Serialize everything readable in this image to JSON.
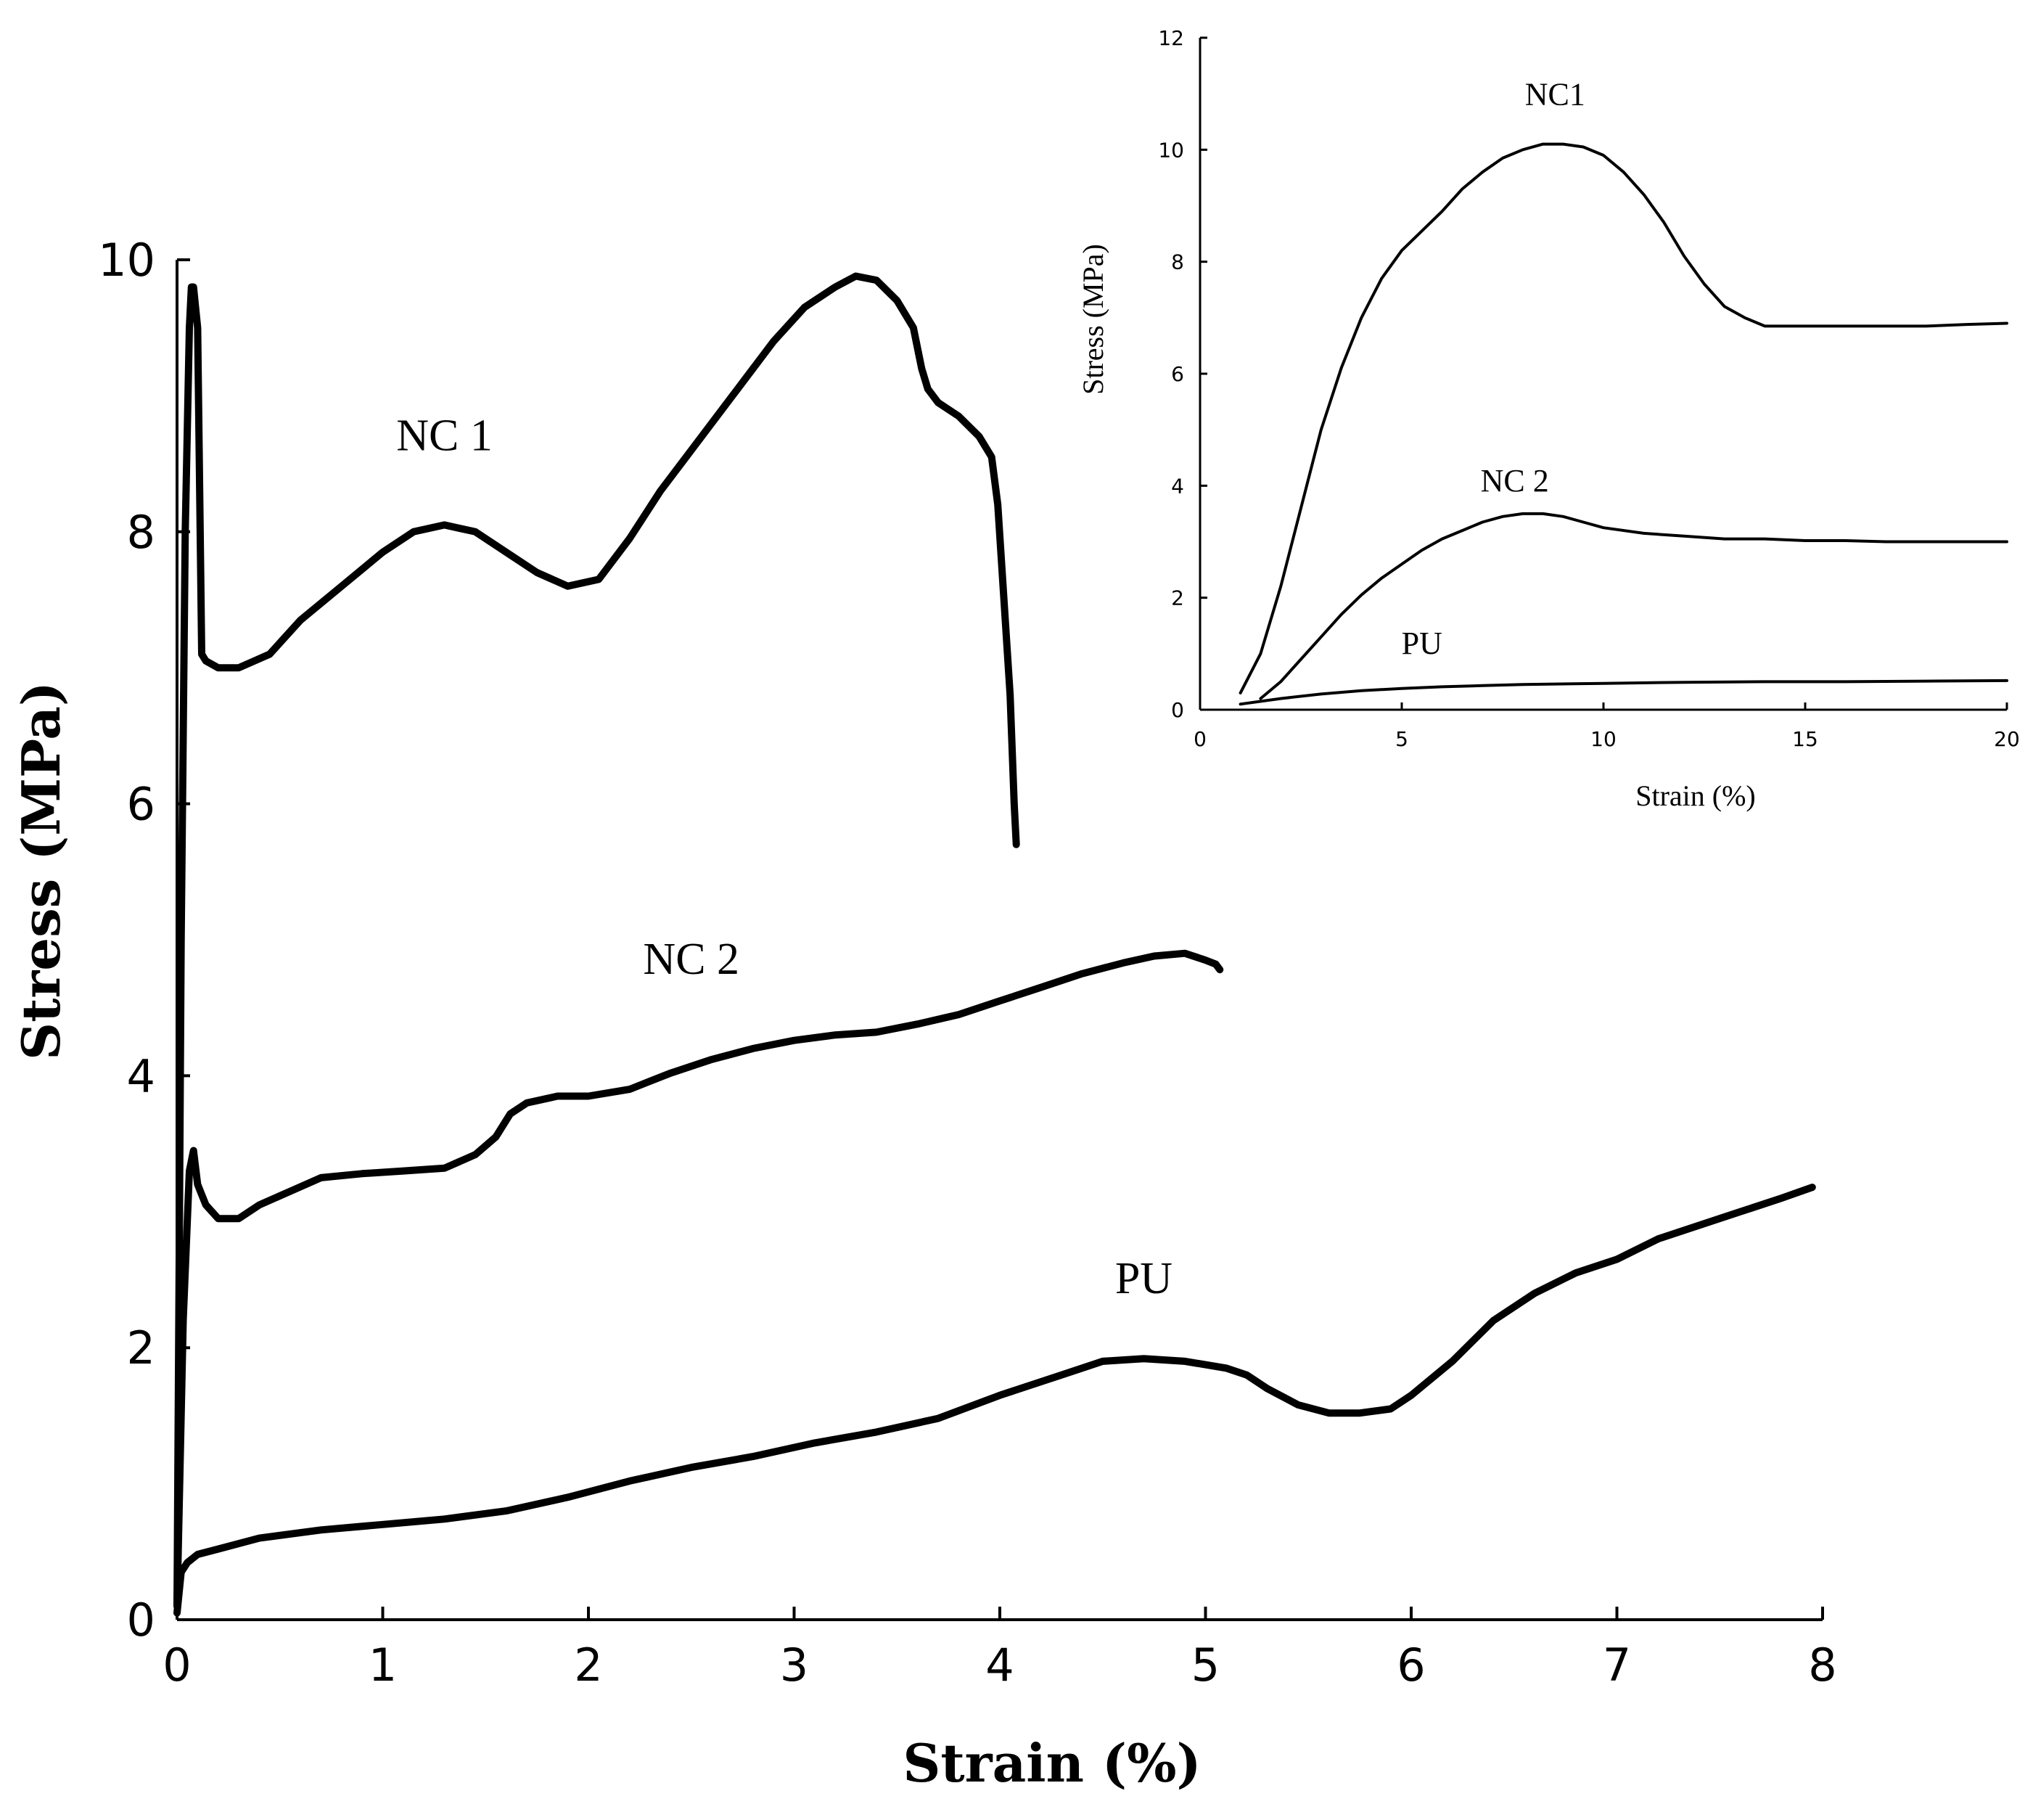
{
  "chart_data": [
    {
      "type": "line",
      "title": "",
      "xlabel": "Strain (%)",
      "ylabel": "Stress (MPa)",
      "xlim": [
        0,
        8
      ],
      "ylim": [
        0,
        10
      ],
      "xticks": [
        0,
        1,
        2,
        3,
        4,
        5,
        6,
        7,
        8
      ],
      "yticks": [
        0,
        2,
        4,
        6,
        8,
        10
      ],
      "grid": false,
      "series": [
        {
          "name": "NC 1",
          "x": [
            0,
            0.02,
            0.04,
            0.06,
            0.07,
            0.08,
            0.1,
            0.12,
            0.14,
            0.2,
            0.3,
            0.45,
            0.6,
            0.8,
            1.0,
            1.15,
            1.3,
            1.45,
            1.6,
            1.75,
            1.9,
            2.05,
            2.2,
            2.35,
            2.5,
            2.7,
            2.9,
            3.05,
            3.2,
            3.3,
            3.4,
            3.5,
            3.58,
            3.62,
            3.65,
            3.7,
            3.8,
            3.9,
            3.96,
            3.99,
            4.02,
            4.05,
            4.07,
            4.08
          ],
          "y": [
            0.1,
            5.0,
            8.0,
            9.5,
            9.8,
            9.8,
            9.5,
            7.1,
            7.05,
            7.0,
            7.0,
            7.1,
            7.35,
            7.6,
            7.85,
            8.0,
            8.05,
            8.0,
            7.85,
            7.7,
            7.6,
            7.65,
            7.95,
            8.3,
            8.6,
            9.0,
            9.4,
            9.65,
            9.8,
            9.88,
            9.85,
            9.7,
            9.5,
            9.2,
            9.05,
            8.95,
            8.85,
            8.7,
            8.55,
            8.2,
            7.5,
            6.8,
            6.0,
            5.7
          ]
        },
        {
          "name": "NC 2",
          "x": [
            0,
            0.03,
            0.06,
            0.08,
            0.1,
            0.14,
            0.2,
            0.3,
            0.4,
            0.55,
            0.7,
            0.9,
            1.1,
            1.3,
            1.45,
            1.55,
            1.62,
            1.7,
            1.85,
            2.0,
            2.2,
            2.4,
            2.6,
            2.8,
            3.0,
            3.2,
            3.4,
            3.6,
            3.8,
            4.0,
            4.2,
            4.4,
            4.6,
            4.75,
            4.9,
            5.0,
            5.05,
            5.07
          ],
          "y": [
            0.1,
            2.2,
            3.3,
            3.45,
            3.2,
            3.05,
            2.95,
            2.95,
            3.05,
            3.15,
            3.25,
            3.28,
            3.3,
            3.32,
            3.42,
            3.55,
            3.72,
            3.8,
            3.85,
            3.85,
            3.9,
            4.02,
            4.12,
            4.2,
            4.26,
            4.3,
            4.32,
            4.38,
            4.45,
            4.55,
            4.65,
            4.75,
            4.83,
            4.88,
            4.9,
            4.85,
            4.82,
            4.78
          ]
        },
        {
          "name": "PU",
          "x": [
            0,
            0.02,
            0.05,
            0.1,
            0.2,
            0.4,
            0.7,
            1.0,
            1.3,
            1.6,
            1.9,
            2.2,
            2.5,
            2.8,
            3.1,
            3.4,
            3.7,
            4.0,
            4.3,
            4.5,
            4.7,
            4.9,
            5.1,
            5.2,
            5.3,
            5.45,
            5.6,
            5.75,
            5.9,
            6.0,
            6.2,
            6.4,
            6.6,
            6.8,
            7.0,
            7.2,
            7.4,
            7.6,
            7.8,
            7.95
          ],
          "y": [
            0.05,
            0.35,
            0.42,
            0.48,
            0.52,
            0.6,
            0.66,
            0.7,
            0.74,
            0.8,
            0.9,
            1.02,
            1.12,
            1.2,
            1.3,
            1.38,
            1.48,
            1.65,
            1.8,
            1.9,
            1.92,
            1.9,
            1.85,
            1.8,
            1.7,
            1.58,
            1.52,
            1.52,
            1.55,
            1.65,
            1.9,
            2.2,
            2.4,
            2.55,
            2.65,
            2.8,
            2.9,
            3.0,
            3.1,
            3.18
          ]
        }
      ],
      "annotations": [
        {
          "text": "NC 1",
          "x": 1.3,
          "y": 8.6
        },
        {
          "text": "NC 2",
          "x": 2.5,
          "y": 4.75
        },
        {
          "text": "PU",
          "x": 4.7,
          "y": 2.4
        }
      ]
    },
    {
      "type": "line",
      "title": "",
      "xlabel": "Strain (%)",
      "ylabel": "Stress (MPa)",
      "xlim": [
        0,
        20
      ],
      "ylim": [
        0,
        12
      ],
      "xticks": [
        0,
        5,
        10,
        15,
        20
      ],
      "yticks": [
        0,
        2,
        4,
        6,
        8,
        10,
        12
      ],
      "grid": false,
      "series": [
        {
          "name": "NC1",
          "x": [
            1.0,
            1.5,
            2.0,
            2.5,
            3.0,
            3.5,
            4.0,
            4.5,
            5.0,
            5.5,
            6.0,
            6.5,
            7.0,
            7.5,
            8.0,
            8.5,
            9.0,
            9.5,
            10.0,
            10.5,
            11.0,
            11.5,
            12.0,
            12.5,
            13.0,
            13.5,
            14.0,
            14.5,
            15.0,
            16.0,
            17.0,
            18.0,
            19.0,
            20.0
          ],
          "y": [
            0.3,
            1.0,
            2.2,
            3.6,
            5.0,
            6.1,
            7.0,
            7.7,
            8.2,
            8.55,
            8.9,
            9.3,
            9.6,
            9.85,
            10.0,
            10.1,
            10.1,
            10.05,
            9.9,
            9.6,
            9.2,
            8.7,
            8.1,
            7.6,
            7.2,
            7.0,
            6.85,
            6.85,
            6.85,
            6.85,
            6.85,
            6.85,
            6.88,
            6.9
          ]
        },
        {
          "name": "NC 2",
          "x": [
            1.5,
            2.0,
            2.5,
            3.0,
            3.5,
            4.0,
            4.5,
            5.0,
            5.5,
            6.0,
            6.5,
            7.0,
            7.5,
            8.0,
            8.5,
            9.0,
            9.5,
            10.0,
            11.0,
            12.0,
            13.0,
            14.0,
            15.0,
            16.0,
            17.0,
            18.0,
            19.0,
            20.0
          ],
          "y": [
            0.2,
            0.5,
            0.9,
            1.3,
            1.7,
            2.05,
            2.35,
            2.6,
            2.85,
            3.05,
            3.2,
            3.35,
            3.45,
            3.5,
            3.5,
            3.45,
            3.35,
            3.25,
            3.15,
            3.1,
            3.05,
            3.05,
            3.02,
            3.02,
            3.0,
            3.0,
            3.0,
            3.0
          ]
        },
        {
          "name": "PU",
          "x": [
            1.0,
            2.0,
            3.0,
            4.0,
            5.0,
            6.0,
            7.0,
            8.0,
            10.0,
            12.0,
            14.0,
            16.0,
            18.0,
            20.0
          ],
          "y": [
            0.1,
            0.2,
            0.28,
            0.34,
            0.38,
            0.41,
            0.43,
            0.45,
            0.47,
            0.49,
            0.5,
            0.5,
            0.51,
            0.52
          ]
        }
      ],
      "annotations": [
        {
          "text": "NC1",
          "x": 8.8,
          "y": 10.8
        },
        {
          "text": "NC 2",
          "x": 7.8,
          "y": 3.9
        },
        {
          "text": "PU",
          "x": 5.5,
          "y": 1.0
        }
      ]
    }
  ]
}
